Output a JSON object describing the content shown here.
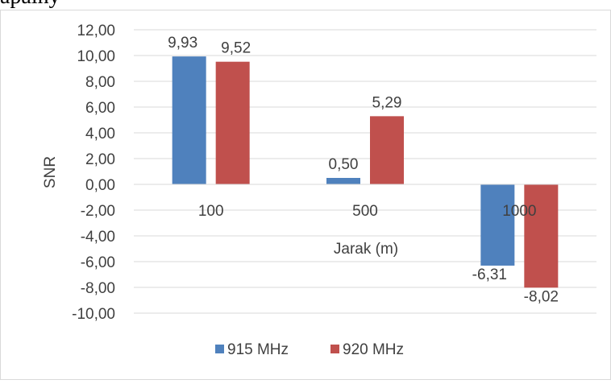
{
  "page": {
    "top_text": "apalny"
  },
  "chart_data": {
    "type": "bar",
    "categories": [
      "100",
      "500",
      "1000"
    ],
    "series": [
      {
        "name": "915 MHz",
        "values": [
          9.93,
          0.5,
          -6.31
        ],
        "color": "#4f81bd"
      },
      {
        "name": "920 MHz",
        "values": [
          9.52,
          5.29,
          -8.02
        ],
        "color": "#c0504d"
      }
    ],
    "data_labels": [
      [
        "9,93",
        "0,50",
        "-6,31"
      ],
      [
        "9,52",
        "5,29",
        "-8,02"
      ]
    ],
    "y_ticks": [
      12,
      10,
      8,
      6,
      4,
      2,
      0,
      -2,
      -4,
      -6,
      -8,
      -10
    ],
    "y_tick_labels": [
      "12,00",
      "10,00",
      "8,00",
      "6,00",
      "4,00",
      "2,00",
      "0,00",
      "-2,00",
      "-4,00",
      "-6,00",
      "-8,00",
      "-10,00"
    ],
    "xlabel": "Jarak (m)",
    "ylabel": "SNR",
    "ylim": [
      -10,
      12
    ],
    "grid": true,
    "legend_position": "bottom"
  }
}
